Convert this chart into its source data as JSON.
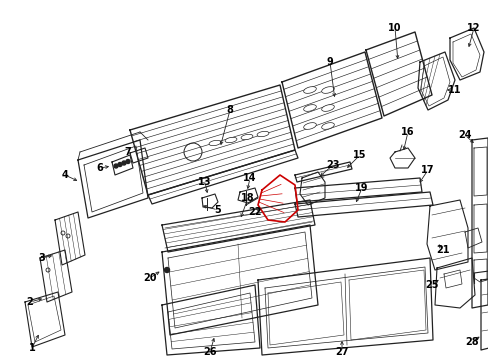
{
  "bg_color": "#ffffff",
  "line_color": "#222222",
  "red_color": "#cc0000",
  "fig_width": 4.89,
  "fig_height": 3.6,
  "dpi": 100
}
